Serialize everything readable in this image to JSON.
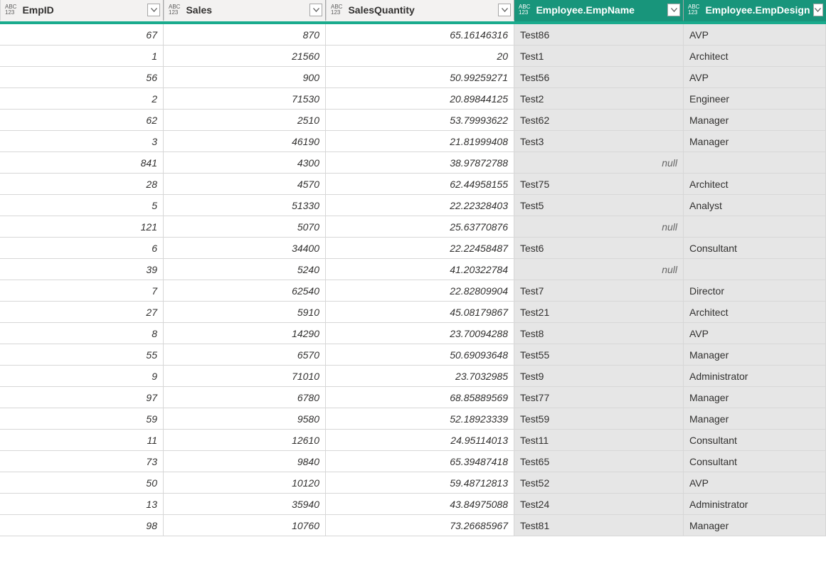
{
  "colors": {
    "header_normal_bg": "#f3f2f1",
    "header_expanded_bg": "#18957b",
    "teal_strip": "#1aab8d",
    "grid_border": "#d7d7d7",
    "header_border": "#a6a6a6",
    "expanded_text": "#ffffff",
    "text": "#323130",
    "null_text": "#666666",
    "txt_cell_bg": "#e6e6e6"
  },
  "type_badge": {
    "line1": "ABC",
    "line2": "123"
  },
  "null_label": "null",
  "columns": [
    {
      "label": "EmpID",
      "kind": "num",
      "expanded": false
    },
    {
      "label": "Sales",
      "kind": "num",
      "expanded": false
    },
    {
      "label": "SalesQuantity",
      "kind": "num",
      "expanded": false
    },
    {
      "label": "Employee.EmpName",
      "kind": "txt",
      "expanded": true
    },
    {
      "label": "Employee.EmpDesign",
      "kind": "txt",
      "expanded": true
    }
  ],
  "rows": [
    {
      "empid": "67",
      "sales": "870",
      "qty": "65.16146316",
      "name": "Test86",
      "design": "AVP"
    },
    {
      "empid": "1",
      "sales": "21560",
      "qty": "20",
      "name": "Test1",
      "design": "Architect"
    },
    {
      "empid": "56",
      "sales": "900",
      "qty": "50.99259271",
      "name": "Test56",
      "design": "AVP"
    },
    {
      "empid": "2",
      "sales": "71530",
      "qty": "20.89844125",
      "name": "Test2",
      "design": "Engineer"
    },
    {
      "empid": "62",
      "sales": "2510",
      "qty": "53.79993622",
      "name": "Test62",
      "design": "Manager"
    },
    {
      "empid": "3",
      "sales": "46190",
      "qty": "21.81999408",
      "name": "Test3",
      "design": "Manager"
    },
    {
      "empid": "841",
      "sales": "4300",
      "qty": "38.97872788",
      "name": null,
      "design": ""
    },
    {
      "empid": "28",
      "sales": "4570",
      "qty": "62.44958155",
      "name": "Test75",
      "design": "Architect"
    },
    {
      "empid": "5",
      "sales": "51330",
      "qty": "22.22328403",
      "name": "Test5",
      "design": "Analyst"
    },
    {
      "empid": "121",
      "sales": "5070",
      "qty": "25.63770876",
      "name": null,
      "design": ""
    },
    {
      "empid": "6",
      "sales": "34400",
      "qty": "22.22458487",
      "name": "Test6",
      "design": "Consultant"
    },
    {
      "empid": "39",
      "sales": "5240",
      "qty": "41.20322784",
      "name": null,
      "design": ""
    },
    {
      "empid": "7",
      "sales": "62540",
      "qty": "22.82809904",
      "name": "Test7",
      "design": "Director"
    },
    {
      "empid": "27",
      "sales": "5910",
      "qty": "45.08179867",
      "name": "Test21",
      "design": "Architect"
    },
    {
      "empid": "8",
      "sales": "14290",
      "qty": "23.70094288",
      "name": "Test8",
      "design": "AVP"
    },
    {
      "empid": "55",
      "sales": "6570",
      "qty": "50.69093648",
      "name": "Test55",
      "design": "Manager"
    },
    {
      "empid": "9",
      "sales": "71010",
      "qty": "23.7032985",
      "name": "Test9",
      "design": "Administrator"
    },
    {
      "empid": "97",
      "sales": "6780",
      "qty": "68.85889569",
      "name": "Test77",
      "design": "Manager"
    },
    {
      "empid": "59",
      "sales": "9580",
      "qty": "52.18923339",
      "name": "Test59",
      "design": "Manager"
    },
    {
      "empid": "11",
      "sales": "12610",
      "qty": "24.95114013",
      "name": "Test11",
      "design": "Consultant"
    },
    {
      "empid": "73",
      "sales": "9840",
      "qty": "65.39487418",
      "name": "Test65",
      "design": "Consultant"
    },
    {
      "empid": "50",
      "sales": "10120",
      "qty": "59.48712813",
      "name": "Test52",
      "design": "AVP"
    },
    {
      "empid": "13",
      "sales": "35940",
      "qty": "43.84975088",
      "name": "Test24",
      "design": "Administrator"
    },
    {
      "empid": "98",
      "sales": "10760",
      "qty": "73.26685967",
      "name": "Test81",
      "design": "Manager"
    }
  ]
}
